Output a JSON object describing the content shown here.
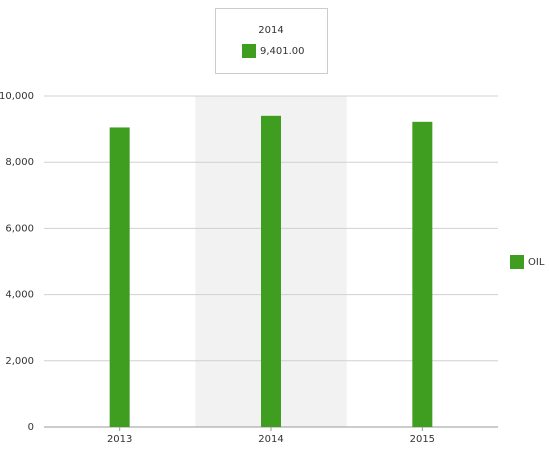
{
  "chart_data": {
    "type": "bar",
    "categories": [
      "2013",
      "2014",
      "2015"
    ],
    "series": [
      {
        "name": "OIL",
        "color": "#3f9e1f",
        "values": [
          9050,
          9401,
          9220
        ]
      }
    ],
    "ylim": [
      0,
      10000
    ],
    "yticks": [
      0,
      {
        "value": 2000,
        "label": "2,000"
      },
      {
        "value": 4000,
        "label": "4,000"
      },
      {
        "value": 6000,
        "label": "6,000"
      },
      {
        "value": 8000,
        "label": "8,000"
      },
      {
        "value": 10000,
        "label": "10,000"
      }
    ],
    "grid": true,
    "legend": "right",
    "tooltip": {
      "title": "2014",
      "label": "9,401.00"
    }
  }
}
